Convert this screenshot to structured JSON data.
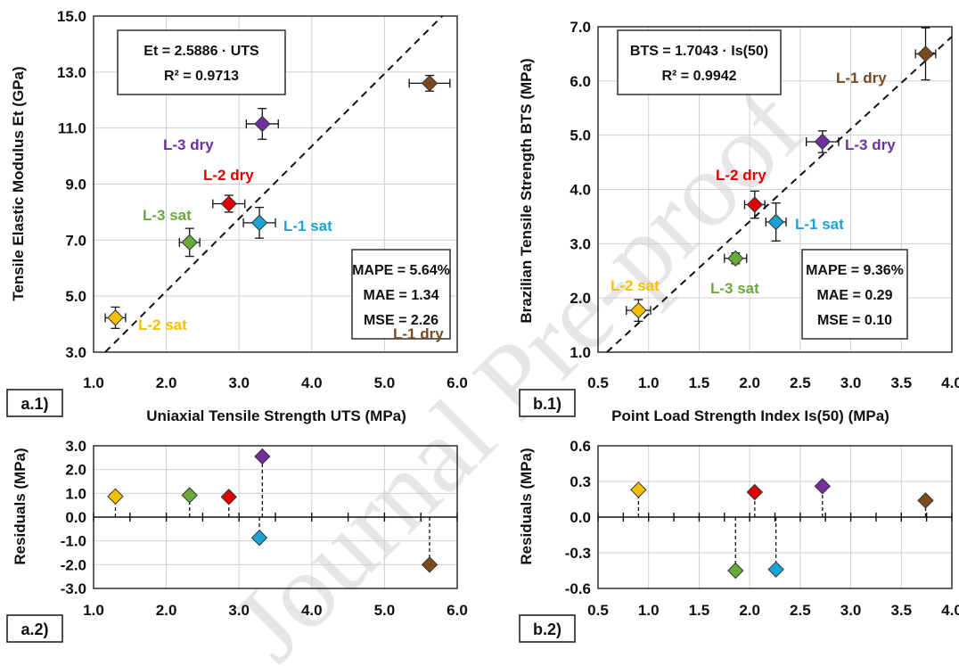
{
  "watermark": "Journal Pre-proof",
  "chart_data": [
    {
      "id": "a1",
      "type": "scatter",
      "panel_tag": "a.1)",
      "xlabel": "Uniaxial Tensile Strength   UTS (MPa)",
      "ylabel": "Tensile Elastic Modulus   Et (GPa)",
      "xlim": [
        1.0,
        6.0
      ],
      "ylim": [
        3.0,
        15.0
      ],
      "xticks": [
        "1.0",
        "2.0",
        "3.0",
        "4.0",
        "5.0",
        "6.0"
      ],
      "yticks": [
        "3.0",
        "5.0",
        "7.0",
        "9.0",
        "11.0",
        "13.0",
        "15.0"
      ],
      "grid": true,
      "equation_line1": "Et = 2.5886 · UTS",
      "equation_line2": "R² = 0.9713",
      "fit_slope": 2.5886,
      "metrics": [
        "MAPE =  5.64%",
        "MAE = 1.34",
        "MSE =  2.26"
      ],
      "points": [
        {
          "label": "L-1 dry",
          "x": 5.62,
          "y": 12.6,
          "xerr": 0.28,
          "yerr": 0.28,
          "color": "#7b4a1e"
        },
        {
          "label": "L-3 dry",
          "x": 3.32,
          "y": 11.15,
          "xerr": 0.22,
          "yerr": 0.55,
          "color": "#7030a0"
        },
        {
          "label": "L-2 dry",
          "x": 2.86,
          "y": 8.3,
          "xerr": 0.22,
          "yerr": 0.3,
          "color": "#e00000"
        },
        {
          "label": "L-1 sat",
          "x": 3.28,
          "y": 7.62,
          "xerr": 0.22,
          "yerr": 0.55,
          "color": "#1ba3d6"
        },
        {
          "label": "L-3 sat",
          "x": 2.32,
          "y": 6.92,
          "xerr": 0.14,
          "yerr": 0.5,
          "color": "#6aaa3a"
        },
        {
          "label": "L-2 sat",
          "x": 1.3,
          "y": 4.23,
          "xerr": 0.14,
          "yerr": 0.38,
          "color": "#f5c000"
        }
      ]
    },
    {
      "id": "b1",
      "type": "scatter",
      "panel_tag": "b.1)",
      "xlabel": "Point Load Strength Index Is(50)   (MPa)",
      "ylabel": "Brazilian Tensile Strength   BTS (MPa)",
      "xlim": [
        0.5,
        4.0
      ],
      "ylim": [
        1.0,
        7.0
      ],
      "xticks": [
        "0.5",
        "1.0",
        "1.5",
        "2.0",
        "2.5",
        "3.0",
        "3.5",
        "4.0"
      ],
      "yticks": [
        "1.0",
        "2.0",
        "3.0",
        "4.0",
        "5.0",
        "6.0",
        "7.0"
      ],
      "grid": true,
      "equation_line1": "BTS = 1.7043 · Is(50)",
      "equation_line2": "R² = 0.9942",
      "fit_slope": 1.7043,
      "metrics": [
        "MAPE = 9.36%",
        "MAE = 0.29",
        "MSE =  0.10"
      ],
      "points": [
        {
          "label": "L-1 dry",
          "x": 3.74,
          "y": 6.5,
          "xerr": 0.1,
          "yerr": 0.48,
          "color": "#7b4a1e"
        },
        {
          "label": "L-3 dry",
          "x": 2.72,
          "y": 4.88,
          "xerr": 0.16,
          "yerr": 0.2,
          "color": "#7030a0"
        },
        {
          "label": "L-2 dry",
          "x": 2.05,
          "y": 3.72,
          "xerr": 0.1,
          "yerr": 0.25,
          "color": "#e00000"
        },
        {
          "label": "L-1 sat",
          "x": 2.26,
          "y": 3.4,
          "xerr": 0.1,
          "yerr": 0.35,
          "color": "#1ba3d6"
        },
        {
          "label": "L-3 sat",
          "x": 1.86,
          "y": 2.73,
          "xerr": 0.11,
          "yerr": 0.1,
          "color": "#6aaa3a"
        },
        {
          "label": "L-2 sat",
          "x": 0.9,
          "y": 1.77,
          "xerr": 0.12,
          "yerr": 0.2,
          "color": "#f5c000"
        }
      ]
    },
    {
      "id": "a2",
      "type": "scatter",
      "panel_tag": "a.2)",
      "ylabel": "Residuals (MPa)",
      "xlim": [
        1.0,
        6.0
      ],
      "ylim": [
        -3.0,
        3.0
      ],
      "xticks": [
        "1.0",
        "2.0",
        "3.0",
        "4.0",
        "5.0",
        "6.0"
      ],
      "yticks": [
        "3.0",
        "2.0",
        "1.0",
        "0.0",
        "-1.0",
        "-2.0",
        "-3.0"
      ],
      "grid": true,
      "points": [
        {
          "x": 1.3,
          "y": 0.87,
          "color": "#f5c000"
        },
        {
          "x": 2.32,
          "y": 0.92,
          "color": "#6aaa3a"
        },
        {
          "x": 2.86,
          "y": 0.85,
          "color": "#e00000"
        },
        {
          "x": 3.32,
          "y": 2.55,
          "color": "#7030a0"
        },
        {
          "x": 3.28,
          "y": -0.87,
          "color": "#1ba3d6"
        },
        {
          "x": 5.62,
          "y": -2.0,
          "color": "#7b4a1e"
        }
      ]
    },
    {
      "id": "b2",
      "type": "scatter",
      "panel_tag": "b.2)",
      "ylabel": "Residuals (MPa)",
      "xlim": [
        0.5,
        4.0
      ],
      "ylim": [
        -0.6,
        0.6
      ],
      "xticks": [
        "0.5",
        "1.0",
        "1.5",
        "2.0",
        "2.5",
        "3.0",
        "3.5",
        "4.0"
      ],
      "yticks": [
        "0.6",
        "0.3",
        "0.0",
        "-0.3",
        "-0.6"
      ],
      "grid": true,
      "points": [
        {
          "x": 0.9,
          "y": 0.23,
          "color": "#f5c000"
        },
        {
          "x": 1.86,
          "y": -0.45,
          "color": "#6aaa3a"
        },
        {
          "x": 2.05,
          "y": 0.21,
          "color": "#e00000"
        },
        {
          "x": 2.26,
          "y": -0.44,
          "color": "#1ba3d6"
        },
        {
          "x": 2.72,
          "y": 0.26,
          "color": "#7030a0"
        },
        {
          "x": 3.74,
          "y": 0.14,
          "color": "#7b4a1e"
        }
      ]
    }
  ]
}
